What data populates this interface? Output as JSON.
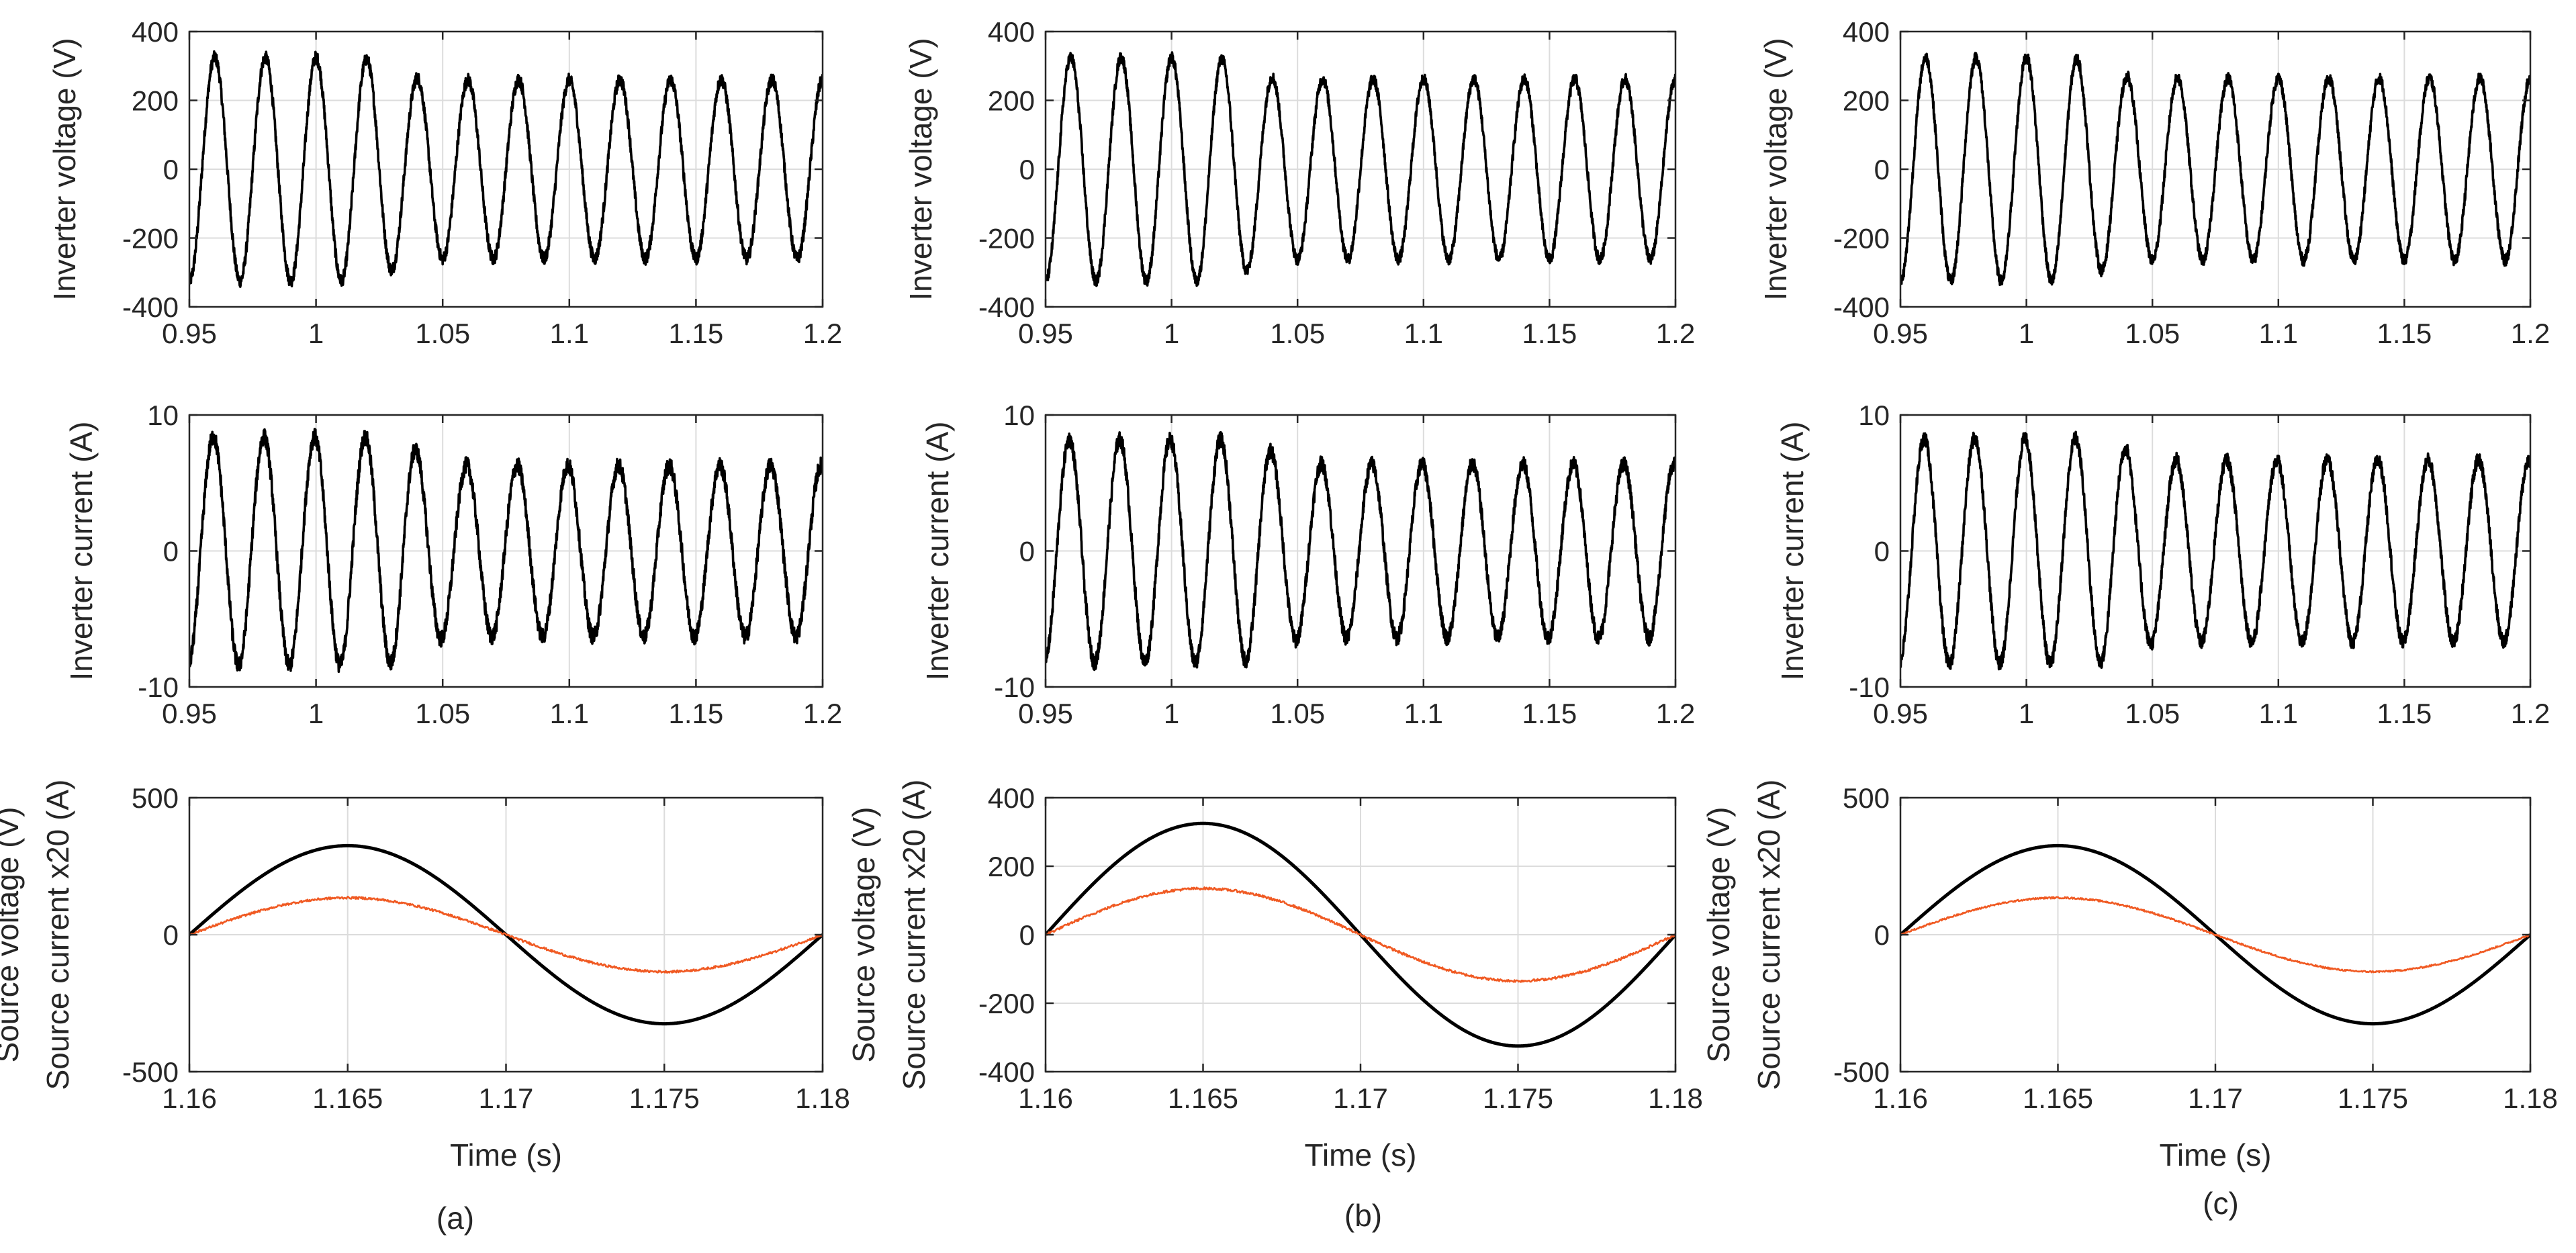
{
  "figure": {
    "captions": [
      "(a)",
      "(b)",
      "(c)"
    ],
    "colors": {
      "axes": "#262626",
      "grid": "#dcdcdc",
      "voltage": "#000000",
      "current": "#f05a23"
    }
  },
  "chart_data": [
    {
      "type": "line",
      "id": "a-voltage",
      "column": "a",
      "row": "inverter-voltage",
      "ylabel": "Inverter voltage (V)",
      "xlabel": "",
      "xlim": [
        0.95,
        1.2
      ],
      "ylim": [
        -400,
        400
      ],
      "xticks": [
        0.95,
        1,
        1.05,
        1.1,
        1.15,
        1.2
      ],
      "xtick_labels": [
        "0.95",
        "1",
        "1.05",
        "1.1",
        "1.15",
        "1.2"
      ],
      "yticks": [
        -400,
        -200,
        0,
        200,
        400
      ],
      "ytick_labels": [
        "-400",
        "-200",
        "0",
        "200",
        "400"
      ],
      "grid": true,
      "series": [
        {
          "name": "Inverter voltage",
          "frequency_hz": 50,
          "phase_deg": -90,
          "amplitude_before": 325,
          "amplitude_after": 260,
          "step_time": 1.03,
          "ripple": 18
        }
      ]
    },
    {
      "type": "line",
      "id": "a-current",
      "column": "a",
      "row": "inverter-current",
      "ylabel": "Inverter current (A)",
      "xlabel": "",
      "xlim": [
        0.95,
        1.2
      ],
      "ylim": [
        -10,
        10
      ],
      "xticks": [
        0.95,
        1,
        1.05,
        1.1,
        1.15,
        1.2
      ],
      "xtick_labels": [
        "0.95",
        "1",
        "1.05",
        "1.1",
        "1.15",
        "1.2"
      ],
      "yticks": [
        -10,
        0,
        10
      ],
      "ytick_labels": [
        "-10",
        "0",
        "10"
      ],
      "grid": true,
      "series": [
        {
          "name": "Inverter current",
          "frequency_hz": 50,
          "phase_deg": -80,
          "amplitude_before": 8.4,
          "amplitude_after": 6.3,
          "step_time": 1.04,
          "ripple": 0.6
        }
      ]
    },
    {
      "type": "line",
      "id": "a-source",
      "column": "a",
      "row": "source",
      "ylabel": "Source voltage (V)",
      "ylabel2": "Source current x20 (A)",
      "xlabel": "Time (s)",
      "xlim": [
        1.16,
        1.18
      ],
      "ylim": [
        -500,
        500
      ],
      "xticks": [
        1.16,
        1.165,
        1.17,
        1.175,
        1.18
      ],
      "xtick_labels": [
        "1.16",
        "1.165",
        "1.17",
        "1.175",
        "1.18"
      ],
      "yticks": [
        -500,
        0,
        500
      ],
      "ytick_labels": [
        "-500",
        "0",
        "500"
      ],
      "grid": true,
      "series": [
        {
          "name": "Source voltage",
          "color": "#000000",
          "frequency_hz": 50,
          "amplitude": 325,
          "ripple": 0
        },
        {
          "name": "Source current x20",
          "color": "#f05a23",
          "frequency_hz": 50,
          "amplitude": 135,
          "ripple": 8
        }
      ]
    },
    {
      "type": "line",
      "id": "b-voltage",
      "column": "b",
      "row": "inverter-voltage",
      "ylabel": "Inverter voltage (V)",
      "xlabel": "",
      "xlim": [
        0.95,
        1.2
      ],
      "ylim": [
        -400,
        400
      ],
      "xticks": [
        0.95,
        1,
        1.05,
        1.1,
        1.15,
        1.2
      ],
      "xtick_labels": [
        "0.95",
        "1",
        "1.05",
        "1.1",
        "1.15",
        "1.2"
      ],
      "yticks": [
        -400,
        -200,
        0,
        200,
        400
      ],
      "ytick_labels": [
        "-400",
        "-200",
        "0",
        "200",
        "400"
      ],
      "grid": true,
      "series": [
        {
          "name": "Inverter voltage",
          "frequency_hz": 50,
          "phase_deg": -90,
          "amplitude_before": 325,
          "amplitude_after": 262,
          "step_time": 1.03,
          "ripple": 16
        }
      ]
    },
    {
      "type": "line",
      "id": "b-current",
      "column": "b",
      "row": "inverter-current",
      "ylabel": "Inverter current (A)",
      "xlabel": "",
      "xlim": [
        0.95,
        1.2
      ],
      "ylim": [
        -10,
        10
      ],
      "xticks": [
        0.95,
        1,
        1.05,
        1.1,
        1.15,
        1.2
      ],
      "xtick_labels": [
        "0.95",
        "1",
        "1.05",
        "1.1",
        "1.15",
        "1.2"
      ],
      "yticks": [
        -10,
        0,
        10
      ],
      "ytick_labels": [
        "-10",
        "0",
        "10"
      ],
      "grid": true,
      "series": [
        {
          "name": "Inverter current",
          "frequency_hz": 50,
          "phase_deg": -80,
          "amplitude_before": 8.2,
          "amplitude_after": 6.4,
          "step_time": 1.04,
          "ripple": 0.55
        }
      ]
    },
    {
      "type": "line",
      "id": "b-source",
      "column": "b",
      "row": "source",
      "ylabel": "Source voltage (V)",
      "ylabel2": "Source current x20 (A)",
      "xlabel": "Time (s)",
      "xlim": [
        1.16,
        1.18
      ],
      "ylim": [
        -400,
        400
      ],
      "xticks": [
        1.16,
        1.165,
        1.17,
        1.175,
        1.18
      ],
      "xtick_labels": [
        "1.16",
        "1.165",
        "1.17",
        "1.175",
        "1.18"
      ],
      "yticks": [
        -400,
        -200,
        0,
        200,
        400
      ],
      "ytick_labels": [
        "-400",
        "-200",
        "0",
        "200",
        "400"
      ],
      "grid": true,
      "series": [
        {
          "name": "Source voltage",
          "color": "#000000",
          "frequency_hz": 50,
          "amplitude": 325,
          "ripple": 0
        },
        {
          "name": "Source current x20",
          "color": "#f05a23",
          "frequency_hz": 50,
          "amplitude": 135,
          "ripple": 7
        }
      ]
    },
    {
      "type": "line",
      "id": "c-voltage",
      "column": "c",
      "row": "inverter-voltage",
      "ylabel": "Inverter voltage (V)",
      "xlabel": "",
      "xlim": [
        0.95,
        1.2
      ],
      "ylim": [
        -400,
        400
      ],
      "xticks": [
        0.95,
        1,
        1.05,
        1.1,
        1.15,
        1.2
      ],
      "xtick_labels": [
        "0.95",
        "1",
        "1.05",
        "1.1",
        "1.15",
        "1.2"
      ],
      "yticks": [
        -400,
        -200,
        0,
        200,
        400
      ],
      "ytick_labels": [
        "-400",
        "-200",
        "0",
        "200",
        "400"
      ],
      "grid": true,
      "series": [
        {
          "name": "Inverter voltage",
          "frequency_hz": 50,
          "phase_deg": -90,
          "amplitude_before": 325,
          "amplitude_after": 265,
          "step_time": 1.03,
          "ripple": 16
        }
      ]
    },
    {
      "type": "line",
      "id": "c-current",
      "column": "c",
      "row": "inverter-current",
      "ylabel": "Inverter current (A)",
      "xlabel": "",
      "xlim": [
        0.95,
        1.2
      ],
      "ylim": [
        -10,
        10
      ],
      "xticks": [
        0.95,
        1,
        1.05,
        1.1,
        1.15,
        1.2
      ],
      "xtick_labels": [
        "0.95",
        "1",
        "1.05",
        "1.1",
        "1.15",
        "1.2"
      ],
      "yticks": [
        -10,
        0,
        10
      ],
      "ytick_labels": [
        "-10",
        "0",
        "10"
      ],
      "grid": true,
      "series": [
        {
          "name": "Inverter current",
          "frequency_hz": 50,
          "phase_deg": -80,
          "amplitude_before": 8.3,
          "amplitude_after": 6.7,
          "step_time": 1.04,
          "ripple": 0.5
        }
      ]
    },
    {
      "type": "line",
      "id": "c-source",
      "column": "c",
      "row": "source",
      "ylabel": "Source voltage (V)",
      "ylabel2": "Source current x20 (A)",
      "xlabel": "Time (s)",
      "xlim": [
        1.16,
        1.18
      ],
      "ylim": [
        -500,
        500
      ],
      "xticks": [
        1.16,
        1.165,
        1.17,
        1.175,
        1.18
      ],
      "xtick_labels": [
        "1.16",
        "1.165",
        "1.17",
        "1.175",
        "1.18"
      ],
      "yticks": [
        -500,
        0,
        500
      ],
      "ytick_labels": [
        "-500",
        "0",
        "500"
      ],
      "grid": true,
      "series": [
        {
          "name": "Source voltage",
          "color": "#000000",
          "frequency_hz": 50,
          "amplitude": 325,
          "ripple": 0
        },
        {
          "name": "Source current x20",
          "color": "#f05a23",
          "frequency_hz": 50,
          "amplitude": 135,
          "ripple": 6
        }
      ]
    }
  ]
}
